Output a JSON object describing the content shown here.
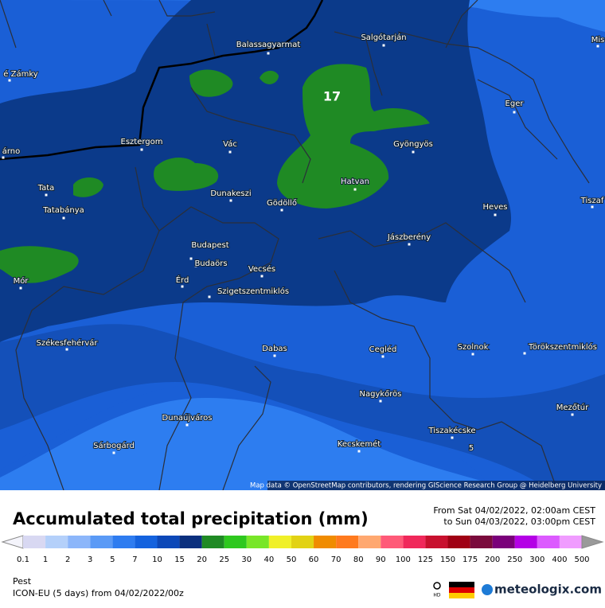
{
  "map": {
    "max_label": "17",
    "attribution": "Map data © OpenStreetMap contributors, rendering GIScience Research Group @ Heidelberg University",
    "places": [
      "Balassagyarmat",
      "Salgótarján",
      "Eger",
      "Gyöngyös",
      "Vác",
      "Esztergom",
      "Dunakeszi",
      "Gödöllő",
      "Hatvan",
      "Tata",
      "Tatabánya",
      "Heves",
      "Jászberény",
      "Budapest",
      "Budaörs",
      "Érd",
      "Vecsés",
      "Szigetszentmiklós",
      "Mór",
      "Székesfehérvár",
      "Dabas",
      "Cegléd",
      "Szolnok",
      "Törökszentmiklós",
      "Nagykőrös",
      "Dunaújváros",
      "Mezőtúr",
      "Tiszakécske",
      "Kecskemét",
      "Sárbogárd",
      "Tiszaf",
      "é Zámky",
      "árno",
      "Mis",
      "5"
    ]
  },
  "footer": {
    "title": "Accumulated total precipitation (mm)",
    "period_from": "From Sat 04/02/2022, 02:00am CEST",
    "period_to": "to Sun 04/03/2022, 03:00pm CEST",
    "legend": {
      "labels": [
        "0.1",
        "1",
        "2",
        "3",
        "5",
        "7",
        "10",
        "15",
        "20",
        "25",
        "30",
        "40",
        "50",
        "60",
        "70",
        "80",
        "90",
        "100",
        "125",
        "150",
        "175",
        "200",
        "250",
        "300",
        "400",
        "500"
      ],
      "colors": [
        "#f4f4fb",
        "#d8d8f2",
        "#b4d0fa",
        "#8cb6fa",
        "#5a9af6",
        "#2e7cf0",
        "#1462de",
        "#0c48b8",
        "#0a2f7e",
        "#1f8a24",
        "#2ec81e",
        "#78e628",
        "#f0f028",
        "#e2d214",
        "#f08c00",
        "#ff7a1e",
        "#ffa870",
        "#ff5a78",
        "#f0285a",
        "#c8102e",
        "#a00014",
        "#7a0a3c",
        "#7a007a",
        "#b400e6",
        "#dc5aff",
        "#f09cff",
        "#ffd2ff",
        "#f4f4f4",
        "#9a9a9a"
      ]
    },
    "region": "Pest",
    "model": "ICON-EU (5 days) from 04/02/2022/00z",
    "badge": "HD",
    "brand": "meteologix.com"
  }
}
